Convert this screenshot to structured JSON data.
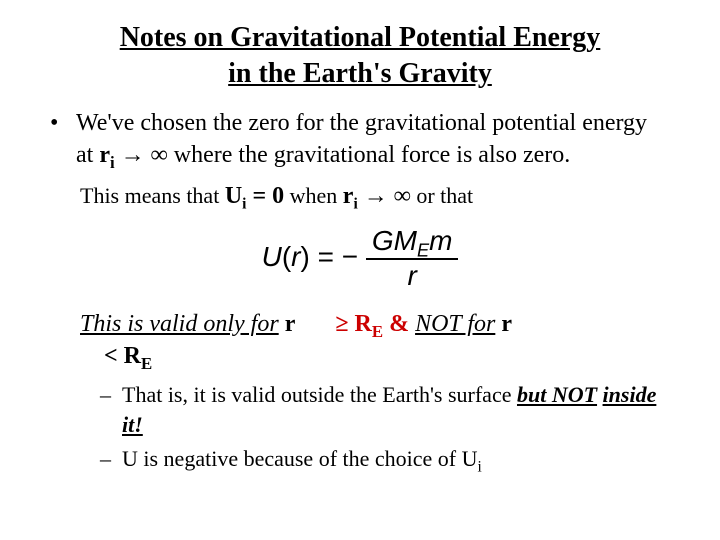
{
  "colors": {
    "text": "#000000",
    "accent_red": "#cc0000",
    "background": "#ffffff"
  },
  "typography": {
    "body_family": "Times New Roman",
    "formula_family": "Arial",
    "title_size_pt": 21,
    "body_size_pt": 18,
    "sub_size_pt": 16
  },
  "title": {
    "line1": "Notes on Gravitational Potential Energy",
    "line2": "in the Earth's Gravity"
  },
  "bullet1": {
    "pre": "We've chosen the zero for the gravitational potential energy at ",
    "r": "r",
    "ri_sub": "i",
    "arrow": " → ",
    "inf": "∞",
    "post": " where the gravitational force is also zero."
  },
  "means": {
    "pre": "This means that ",
    "U": "U",
    "Ui_sub": "i",
    "eq": " = 0",
    "when": " when ",
    "r": "r",
    "ri_sub": "i",
    "arrow": " → ",
    "inf": "∞",
    "post": " or that"
  },
  "formula": {
    "lhs": "U",
    "lhs_arg_open": "(",
    "lhs_arg": "r",
    "lhs_arg_close": ") = −",
    "num_G": "G",
    "num_M": "M",
    "num_Esub": "E",
    "num_m": "m",
    "den": "r"
  },
  "valid": {
    "left_u": "This is valid only for",
    "left_r": " r",
    "indent_lt": "< R",
    "indent_Esub": "E",
    "ge": "≥   ",
    "R": "R",
    "Re_sub": "E",
    "amp": " & ",
    "not_for": "NOT for",
    "tail_r": " r"
  },
  "dash1": {
    "pre": "That is, it is valid outside the Earth's surface ",
    "but_not": "but NOT",
    "inside": "inside it!"
  },
  "dash2": {
    "pre": "U is negative because of the choice of U",
    "sub": "i"
  }
}
